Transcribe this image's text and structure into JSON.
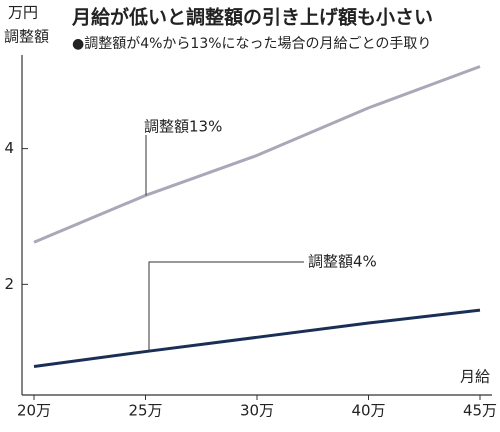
{
  "chart_data": {
    "type": "line",
    "title": "月給が低いと調整額の引き上げ額も小さい",
    "subtitle": "●調整額が4%から13%になった場合の月給ごとの手取り",
    "y_unit": "万円",
    "y_label": "調整額",
    "x_label": "月給",
    "categories": [
      "20万",
      "25万",
      "30万",
      "40万",
      "45万"
    ],
    "series": [
      {
        "name": "調整額13%",
        "color": "#a9a8b8",
        "values": [
          2.62,
          3.31,
          3.9,
          4.6,
          5.21
        ]
      },
      {
        "name": "調整額4%",
        "color": "#1a2f55",
        "values": [
          0.79,
          1.01,
          1.22,
          1.43,
          1.62
        ]
      }
    ],
    "ylim": [
      0.37,
      5.6
    ],
    "yticks": [
      2,
      4
    ]
  }
}
